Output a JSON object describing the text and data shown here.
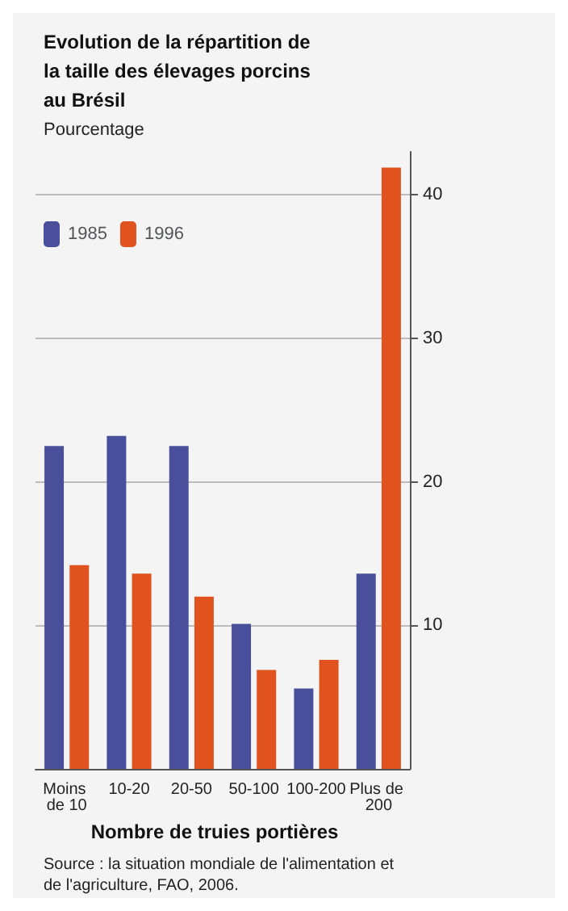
{
  "chart_data": {
    "type": "bar",
    "title": "Evolution de la répartition de la taille des élevages porcins au Brésil",
    "ylabel": "Pourcentage",
    "xlabel": "Nombre de truies portières",
    "categories": [
      "Moins de 10",
      "10-20",
      "20-50",
      "50-100",
      "100-200",
      "Plus de 200"
    ],
    "series": [
      {
        "name": "1985",
        "color": "#4a4f9c",
        "values": [
          22.5,
          23.2,
          22.5,
          10.1,
          5.6,
          13.6
        ]
      },
      {
        "name": "1996",
        "color": "#e0531f",
        "values": [
          14.2,
          13.6,
          12.0,
          6.9,
          7.6,
          41.9
        ]
      }
    ],
    "ylim": [
      0,
      43
    ],
    "yticks": [
      10,
      20,
      30,
      40
    ],
    "grid": "y",
    "legend": "top left",
    "annotations": [
      "Source : la situation mondiale de l'alimentation et de l'agriculture, FAO, 2006."
    ]
  }
}
